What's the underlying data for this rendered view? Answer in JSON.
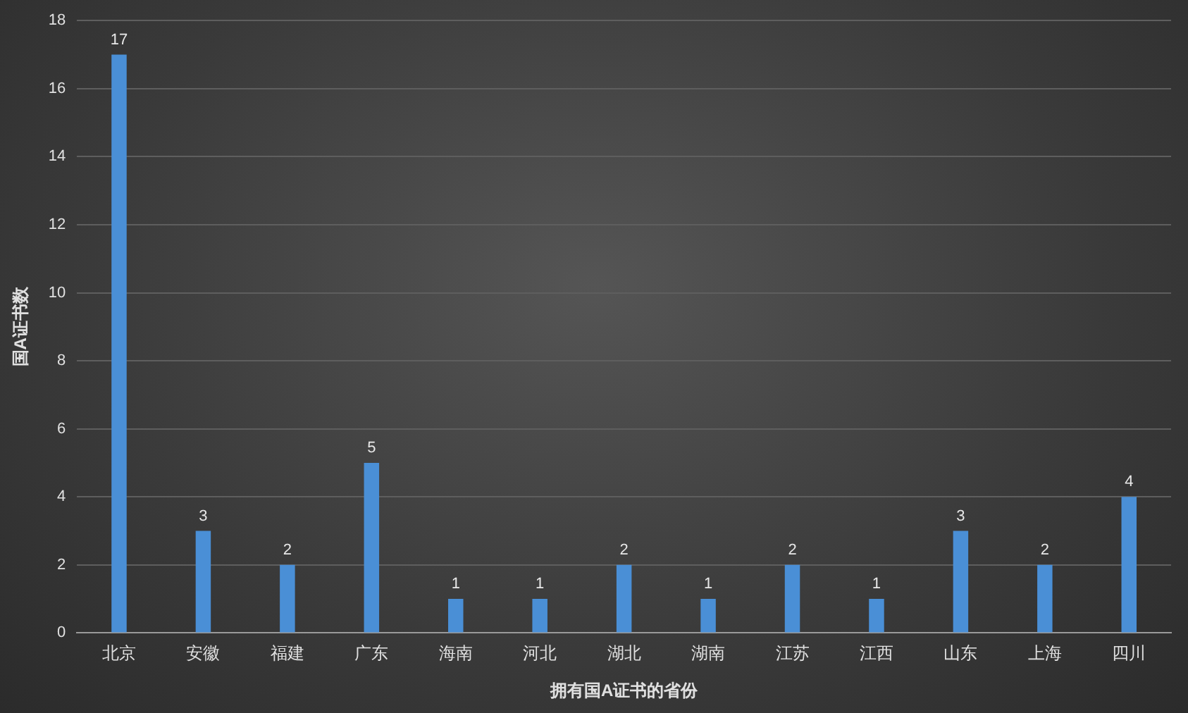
{
  "chart_data": {
    "type": "bar",
    "xlabel": "拥有国A证书的省份",
    "ylabel": "国A证书数",
    "categories": [
      "北京",
      "安徽",
      "福建",
      "广东",
      "海南",
      "河北",
      "湖北",
      "湖南",
      "江苏",
      "江西",
      "山东",
      "上海",
      "四川"
    ],
    "values": [
      17,
      3,
      2,
      5,
      1,
      1,
      2,
      1,
      2,
      1,
      3,
      2,
      4
    ],
    "color": "#4a8fd6",
    "ylim": [
      0,
      18
    ],
    "yticks": [
      0,
      2,
      4,
      6,
      8,
      10,
      12,
      14,
      16,
      18
    ],
    "grid": "y",
    "data_labels": true,
    "legend": false
  }
}
